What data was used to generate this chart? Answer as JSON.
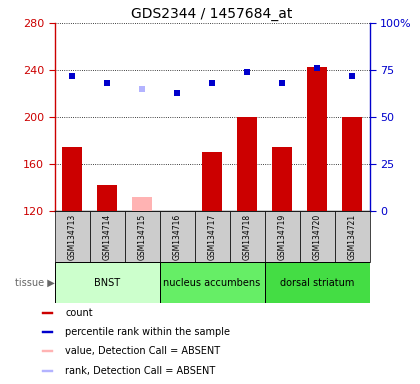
{
  "title": "GDS2344 / 1457684_at",
  "samples": [
    "GSM134713",
    "GSM134714",
    "GSM134715",
    "GSM134716",
    "GSM134717",
    "GSM134718",
    "GSM134719",
    "GSM134720",
    "GSM134721"
  ],
  "bar_values": [
    175,
    142,
    null,
    120,
    170,
    200,
    175,
    243,
    200
  ],
  "bar_absent_values": [
    null,
    null,
    132,
    null,
    null,
    null,
    null,
    null,
    null
  ],
  "rank_values": [
    72,
    68,
    null,
    63,
    68,
    74,
    68,
    76,
    72
  ],
  "rank_absent_values": [
    null,
    null,
    65,
    null,
    null,
    null,
    null,
    null,
    null
  ],
  "bar_color": "#cc0000",
  "bar_absent_color": "#ffb3b3",
  "rank_color": "#0000cc",
  "rank_absent_color": "#b3b3ff",
  "ylim_left": [
    120,
    280
  ],
  "ylim_right": [
    0,
    100
  ],
  "yticks_left": [
    120,
    160,
    200,
    240,
    280
  ],
  "ytick_labels_left": [
    "120",
    "160",
    "200",
    "240",
    "280"
  ],
  "yticks_right": [
    0,
    25,
    50,
    75,
    100
  ],
  "ytick_labels_right": [
    "0",
    "25",
    "50",
    "75",
    "100%"
  ],
  "tissue_groups": [
    {
      "label": "BNST",
      "start": 0,
      "end": 3,
      "color": "#ccffcc"
    },
    {
      "label": "nucleus accumbens",
      "start": 3,
      "end": 6,
      "color": "#66ee66"
    },
    {
      "label": "dorsal striatum",
      "start": 6,
      "end": 9,
      "color": "#44dd44"
    }
  ],
  "tissue_label": "tissue",
  "legend_items": [
    {
      "label": "count",
      "color": "#cc0000"
    },
    {
      "label": "percentile rank within the sample",
      "color": "#0000cc"
    },
    {
      "label": "value, Detection Call = ABSENT",
      "color": "#ffb3b3"
    },
    {
      "label": "rank, Detection Call = ABSENT",
      "color": "#b3b3ff"
    }
  ],
  "grid_color": "#000000",
  "plot_bg_color": "#ffffff",
  "xticklabel_box_color": "#cccccc",
  "left_axis_color": "#cc0000",
  "right_axis_color": "#0000cc",
  "bar_width": 0.55
}
